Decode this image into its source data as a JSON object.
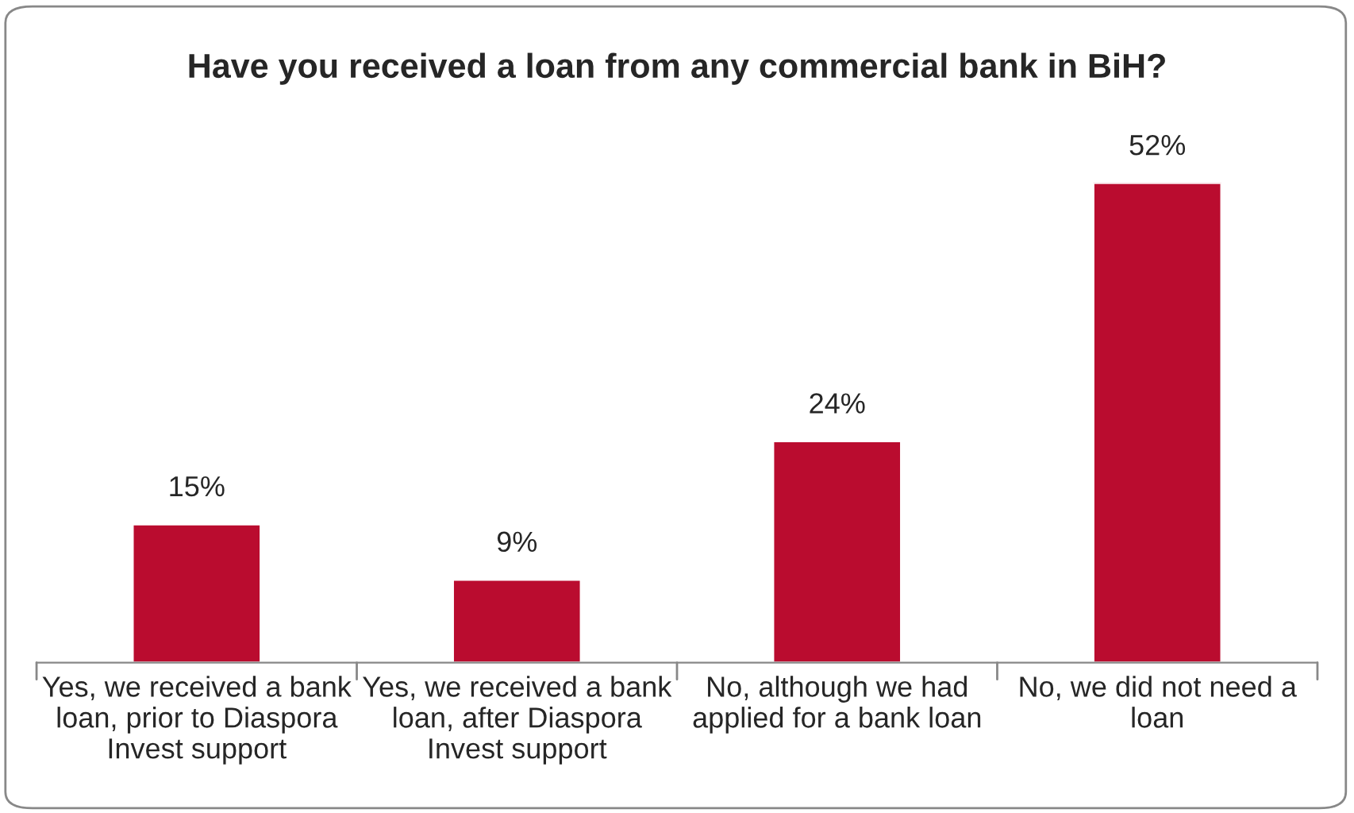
{
  "chart_data": {
    "type": "bar",
    "title": "Have you received a loan from any commercial bank in BiH?",
    "categories": [
      "Yes, we received a bank loan, prior to Diaspora Invest support",
      "Yes, we received a bank loan, after Diaspora Invest support",
      "No, although we had applied for a bank loan",
      "No, we did not need a loan"
    ],
    "values": [
      15,
      9,
      24,
      52
    ],
    "value_labels": [
      "15%",
      "9%",
      "24%",
      "52%"
    ],
    "color": "#ba0c2f",
    "grid": false,
    "legend": false
  }
}
